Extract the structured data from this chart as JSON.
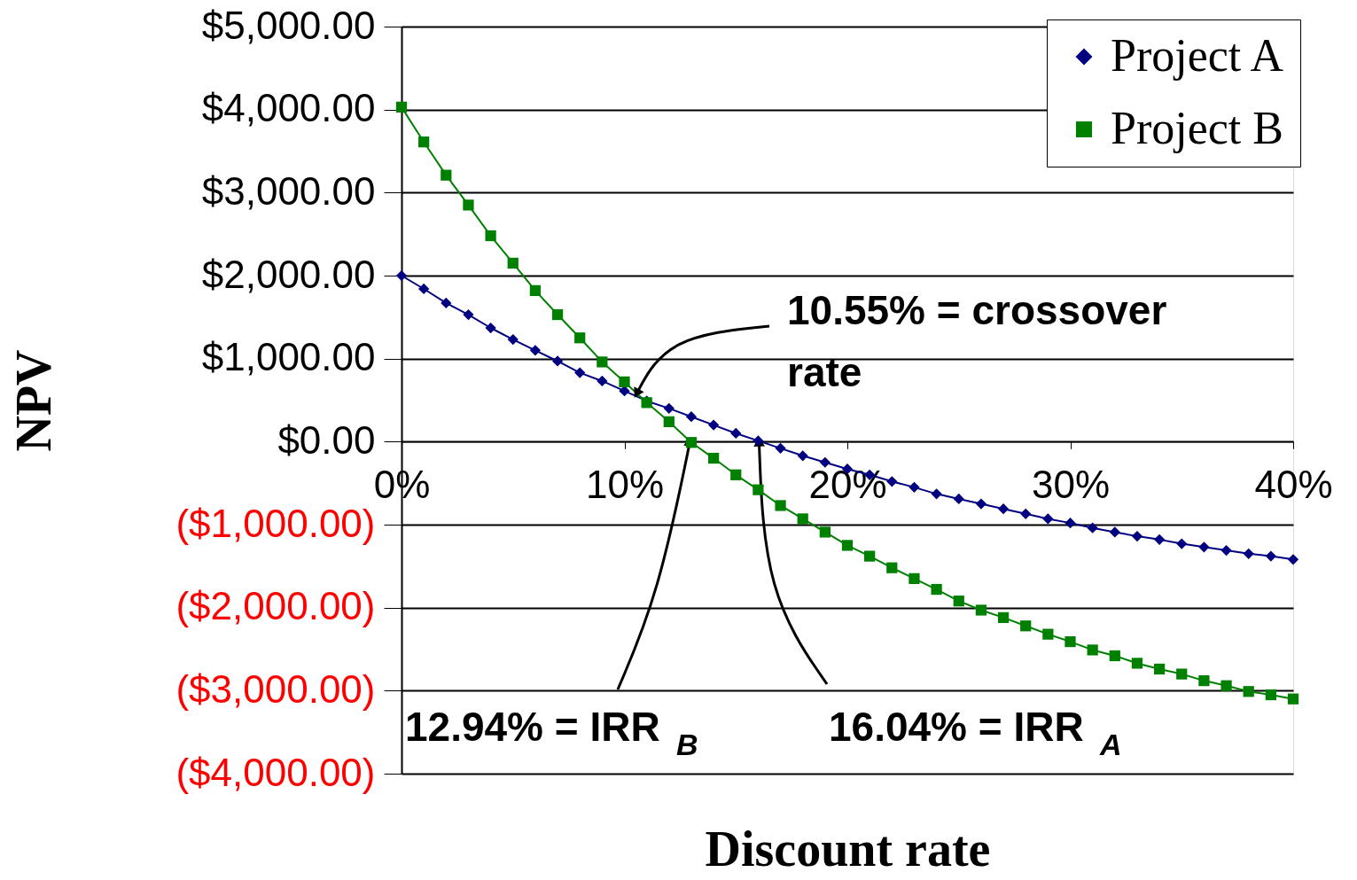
{
  "chart_data": {
    "type": "line",
    "xlabel": "Discount rate",
    "ylabel": "NPV",
    "x": [
      0,
      1,
      2,
      3,
      4,
      5,
      6,
      7,
      8,
      9,
      10,
      11,
      12,
      13,
      14,
      15,
      16,
      17,
      18,
      19,
      20,
      21,
      22,
      23,
      24,
      25,
      26,
      27,
      28,
      29,
      30,
      31,
      32,
      33,
      34,
      35,
      36,
      37,
      38,
      39,
      40
    ],
    "series": [
      {
        "name": "Project A",
        "color": "#000080",
        "marker": "diamond",
        "values": [
          2000,
          1840,
          1670,
          1530,
          1370,
          1230,
          1100,
          970,
          830,
          730,
          610,
          490,
          400,
          300,
          200,
          100,
          10,
          -80,
          -170,
          -250,
          -330,
          -400,
          -480,
          -550,
          -630,
          -690,
          -750,
          -810,
          -870,
          -930,
          -980,
          -1040,
          -1090,
          -1140,
          -1180,
          -1230,
          -1270,
          -1310,
          -1350,
          -1380,
          -1420
        ]
      },
      {
        "name": "Project B",
        "color": "#008000",
        "marker": "square",
        "values": [
          4030,
          3610,
          3210,
          2850,
          2480,
          2150,
          1820,
          1530,
          1250,
          960,
          720,
          470,
          240,
          -10,
          -200,
          -400,
          -580,
          -770,
          -930,
          -1090,
          -1250,
          -1380,
          -1520,
          -1650,
          -1780,
          -1920,
          -2030,
          -2120,
          -2220,
          -2320,
          -2410,
          -2510,
          -2580,
          -2670,
          -2740,
          -2800,
          -2880,
          -2940,
          -3010,
          -3050,
          -3100
        ]
      }
    ],
    "xlim": [
      0,
      40
    ],
    "xticks": [
      {
        "value": 0,
        "label": "0%"
      },
      {
        "value": 10,
        "label": "10%"
      },
      {
        "value": 20,
        "label": "20%"
      },
      {
        "value": 30,
        "label": "30%"
      },
      {
        "value": 40,
        "label": "40%"
      }
    ],
    "ylim": [
      -4000,
      5000
    ],
    "yticks": [
      {
        "value": 5000,
        "label": "$5,000.00"
      },
      {
        "value": 4000,
        "label": "$4,000.00"
      },
      {
        "value": 3000,
        "label": "$3,000.00"
      },
      {
        "value": 2000,
        "label": "$2,000.00"
      },
      {
        "value": 1000,
        "label": "$1,000.00"
      },
      {
        "value": 0,
        "label": "$0.00"
      },
      {
        "value": -1000,
        "label": "($1,000.00)"
      },
      {
        "value": -2000,
        "label": "($2,000.00)"
      },
      {
        "value": -3000,
        "label": "($3,000.00)"
      },
      {
        "value": -4000,
        "label": "($4,000.00)"
      }
    ],
    "annotations": [
      {
        "text": "10.55% = crossover rate",
        "x": 10.55,
        "y": 580
      },
      {
        "text": "12.94% = IRR$_{B}$",
        "x": 12.94,
        "y": 0
      },
      {
        "text": "16.04% = IRR$_{A}$",
        "x": 16.04,
        "y": 0
      }
    ],
    "grid": "y",
    "legend": "top right",
    "line_style": "solid"
  }
}
